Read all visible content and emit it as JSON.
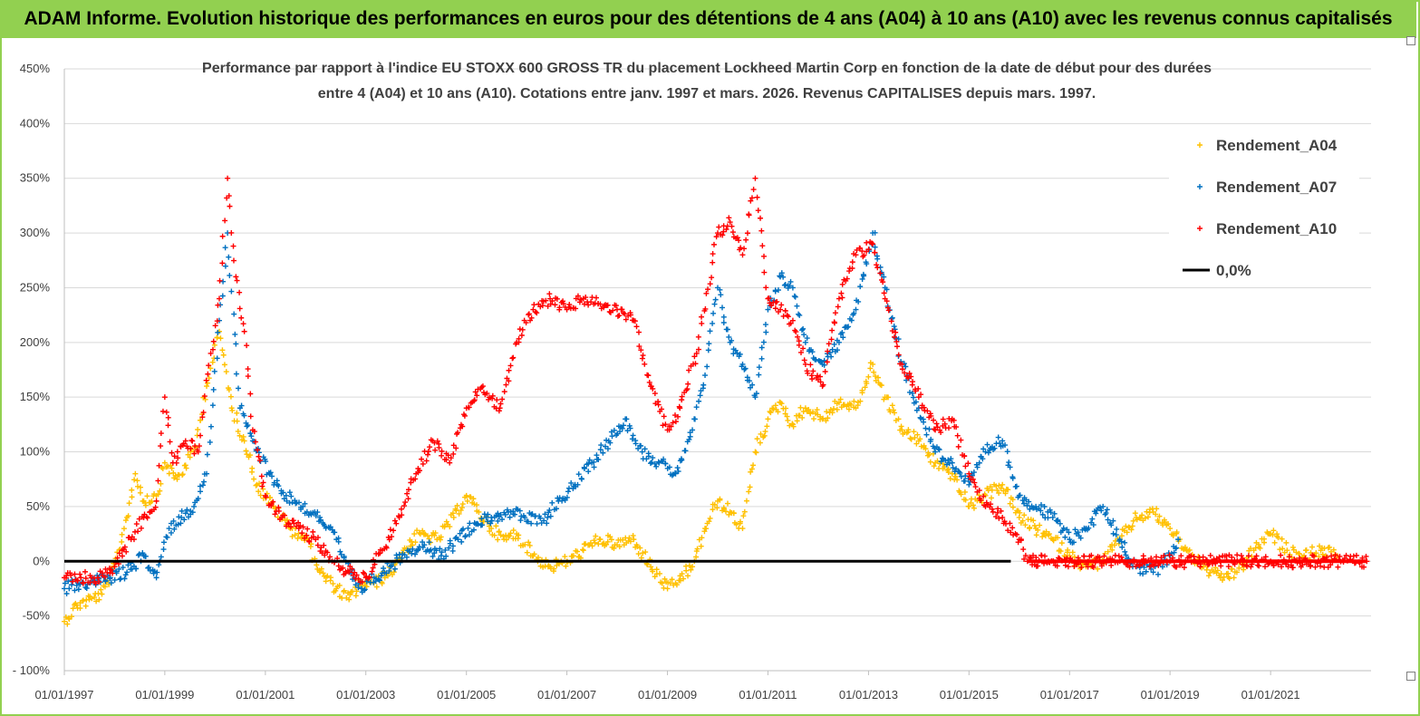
{
  "banner": {
    "title": "ADAM Informe. Evolution historique des performances en euros pour des détentions de 4 ans (A04) à 10 ans (A10) avec les revenus connus capitalisés"
  },
  "chart_data": {
    "type": "scatter",
    "title": "Performance par rapport à l'indice EU STOXX 600 GROSS TR  du placement Lockheed Martin Corp en fonction de la date de début pour des durées entre 4 (A04) et 10 ans (A10). Cotations entre janv. 1997 et mars. 2026. Revenus CAPITALISES depuis mars. 1997.",
    "title_lines": [
      "Performance par rapport à l'indice EU STOXX 600 GROSS TR  du placement Lockheed Martin Corp en fonction de la date de début pour des durées",
      "entre 4 (A04) et 10 ans (A10). Cotations entre janv. 1997 et mars. 2026. Revenus CAPITALISES depuis mars. 1997."
    ],
    "xlabel": "",
    "ylabel": "",
    "xlim": [
      "1997-01-01",
      "2023-01-01"
    ],
    "ylim": [
      -100,
      450
    ],
    "x_ticks": [
      "01/01/1997",
      "01/01/1999",
      "01/01/2001",
      "01/01/2003",
      "01/01/2005",
      "01/01/2007",
      "01/01/2009",
      "01/01/2011",
      "01/01/2013",
      "01/01/2015",
      "01/01/2017",
      "01/01/2019",
      "01/01/2021"
    ],
    "y_ticks": [
      "- 100%",
      "-50%",
      "0%",
      "50%",
      "100%",
      "150%",
      "200%",
      "250%",
      "300%",
      "350%",
      "400%",
      "450%"
    ],
    "grid": true,
    "legend_position": "right",
    "series": [
      {
        "name": "Rendement_A04",
        "marker": "+",
        "color": "#ffc000",
        "points": [
          [
            "1997-01-01",
            -55
          ],
          [
            "1997-04-01",
            -40
          ],
          [
            "1997-07-01",
            -35
          ],
          [
            "1997-10-01",
            -30
          ],
          [
            "1998-01-01",
            -5
          ],
          [
            "1998-04-01",
            40
          ],
          [
            "1998-06-01",
            80
          ],
          [
            "1998-08-01",
            55
          ],
          [
            "1998-11-01",
            60
          ],
          [
            "1999-01-01",
            90
          ],
          [
            "1999-04-01",
            75
          ],
          [
            "1999-08-01",
            100
          ],
          [
            "1999-11-01",
            160
          ],
          [
            "2000-02-01",
            210
          ],
          [
            "2000-05-01",
            140
          ],
          [
            "2000-08-01",
            110
          ],
          [
            "2000-11-01",
            70
          ],
          [
            "2001-03-01",
            50
          ],
          [
            "2001-07-01",
            30
          ],
          [
            "2001-11-01",
            20
          ],
          [
            "2002-02-01",
            -10
          ],
          [
            "2002-06-01",
            -25
          ],
          [
            "2002-09-01",
            -35
          ],
          [
            "2002-12-01",
            -20
          ],
          [
            "2003-03-01",
            -20
          ],
          [
            "2003-07-01",
            -10
          ],
          [
            "2003-10-01",
            10
          ],
          [
            "2004-02-01",
            25
          ],
          [
            "2004-06-01",
            20
          ],
          [
            "2004-10-01",
            40
          ],
          [
            "2005-01-01",
            60
          ],
          [
            "2005-04-01",
            45
          ],
          [
            "2005-07-01",
            30
          ],
          [
            "2005-10-01",
            20
          ],
          [
            "2006-01-01",
            25
          ],
          [
            "2006-05-01",
            5
          ],
          [
            "2006-09-01",
            -5
          ],
          [
            "2007-01-01",
            0
          ],
          [
            "2007-05-01",
            10
          ],
          [
            "2007-09-01",
            20
          ],
          [
            "2008-01-01",
            15
          ],
          [
            "2008-05-01",
            20
          ],
          [
            "2008-09-01",
            -5
          ],
          [
            "2009-01-01",
            -25
          ],
          [
            "2009-03-01",
            -20
          ],
          [
            "2009-07-01",
            -5
          ],
          [
            "2009-10-01",
            30
          ],
          [
            "2010-01-01",
            55
          ],
          [
            "2010-04-01",
            45
          ],
          [
            "2010-07-01",
            30
          ],
          [
            "2010-10-01",
            100
          ],
          [
            "2011-01-01",
            130
          ],
          [
            "2011-04-01",
            145
          ],
          [
            "2011-07-01",
            125
          ],
          [
            "2011-10-01",
            140
          ],
          [
            "2012-02-01",
            130
          ],
          [
            "2012-06-01",
            145
          ],
          [
            "2012-10-01",
            140
          ],
          [
            "2013-02-01",
            180
          ],
          [
            "2013-05-01",
            150
          ],
          [
            "2013-09-01",
            120
          ],
          [
            "2014-01-01",
            110
          ],
          [
            "2014-05-01",
            90
          ],
          [
            "2014-09-01",
            80
          ],
          [
            "2015-01-01",
            50
          ],
          [
            "2015-05-01",
            60
          ],
          [
            "2015-09-01",
            70
          ],
          [
            "2016-01-01",
            40
          ],
          [
            "2016-05-01",
            30
          ],
          [
            "2016-09-01",
            20
          ],
          [
            "2017-01-01",
            5
          ],
          [
            "2017-05-01",
            -5
          ],
          [
            "2017-09-01",
            0
          ],
          [
            "2018-01-01",
            20
          ],
          [
            "2018-05-01",
            40
          ],
          [
            "2018-09-01",
            45
          ],
          [
            "2019-01-01",
            30
          ],
          [
            "2019-05-01",
            10
          ],
          [
            "2019-09-01",
            -5
          ],
          [
            "2020-01-01",
            -15
          ],
          [
            "2020-05-01",
            -10
          ],
          [
            "2020-09-01",
            10
          ],
          [
            "2021-01-01",
            25
          ],
          [
            "2021-05-01",
            10
          ],
          [
            "2021-09-01",
            5
          ],
          [
            "2022-01-01",
            10
          ],
          [
            "2022-05-01",
            5
          ]
        ]
      },
      {
        "name": "Rendement_A07",
        "marker": "+",
        "color": "#0070c0",
        "points": [
          [
            "1997-01-01",
            -25
          ],
          [
            "1997-04-01",
            -22
          ],
          [
            "1997-08-01",
            -18
          ],
          [
            "1997-12-01",
            -15
          ],
          [
            "1998-04-01",
            -10
          ],
          [
            "1998-08-01",
            5
          ],
          [
            "1998-11-01",
            -15
          ],
          [
            "1999-02-01",
            30
          ],
          [
            "1999-05-01",
            40
          ],
          [
            "1999-08-01",
            50
          ],
          [
            "1999-11-01",
            80
          ],
          [
            "2000-02-01",
            220
          ],
          [
            "2000-04-01",
            300
          ],
          [
            "2000-07-01",
            140
          ],
          [
            "2000-10-01",
            110
          ],
          [
            "2001-02-01",
            80
          ],
          [
            "2001-06-01",
            60
          ],
          [
            "2001-10-01",
            50
          ],
          [
            "2002-02-01",
            40
          ],
          [
            "2002-06-01",
            20
          ],
          [
            "2002-09-01",
            -10
          ],
          [
            "2002-12-01",
            -25
          ],
          [
            "2003-03-01",
            -15
          ],
          [
            "2003-07-01",
            -5
          ],
          [
            "2003-11-01",
            10
          ],
          [
            "2004-03-01",
            15
          ],
          [
            "2004-07-01",
            5
          ],
          [
            "2004-11-01",
            20
          ],
          [
            "2005-03-01",
            35
          ],
          [
            "2005-07-01",
            40
          ],
          [
            "2005-11-01",
            45
          ],
          [
            "2006-03-01",
            40
          ],
          [
            "2006-07-01",
            35
          ],
          [
            "2006-11-01",
            55
          ],
          [
            "2007-03-01",
            70
          ],
          [
            "2007-07-01",
            90
          ],
          [
            "2007-11-01",
            110
          ],
          [
            "2008-03-01",
            130
          ],
          [
            "2008-07-01",
            100
          ],
          [
            "2008-11-01",
            90
          ],
          [
            "2009-03-01",
            80
          ],
          [
            "2009-07-01",
            120
          ],
          [
            "2009-10-01",
            170
          ],
          [
            "2010-01-01",
            250
          ],
          [
            "2010-04-01",
            200
          ],
          [
            "2010-07-01",
            180
          ],
          [
            "2010-10-01",
            150
          ],
          [
            "2011-01-01",
            230
          ],
          [
            "2011-04-01",
            260
          ],
          [
            "2011-07-01",
            250
          ],
          [
            "2011-10-01",
            200
          ],
          [
            "2012-02-01",
            180
          ],
          [
            "2012-06-01",
            200
          ],
          [
            "2012-10-01",
            230
          ],
          [
            "2013-02-01",
            300
          ],
          [
            "2013-05-01",
            250
          ],
          [
            "2013-09-01",
            180
          ],
          [
            "2014-01-01",
            140
          ],
          [
            "2014-05-01",
            100
          ],
          [
            "2014-09-01",
            90
          ],
          [
            "2015-01-01",
            70
          ],
          [
            "2015-05-01",
            100
          ],
          [
            "2015-09-01",
            110
          ],
          [
            "2016-01-01",
            60
          ],
          [
            "2016-05-01",
            50
          ],
          [
            "2016-09-01",
            40
          ],
          [
            "2017-01-01",
            20
          ],
          [
            "2017-05-01",
            30
          ],
          [
            "2017-09-01",
            50
          ],
          [
            "2018-01-01",
            20
          ],
          [
            "2018-05-01",
            -5
          ],
          [
            "2018-09-01",
            -10
          ],
          [
            "2019-01-01",
            5
          ],
          [
            "2019-03-01",
            20
          ]
        ]
      },
      {
        "name": "Rendement_A10",
        "marker": "+",
        "color": "#ff0000",
        "points": [
          [
            "1997-01-01",
            -15
          ],
          [
            "1997-05-01",
            -15
          ],
          [
            "1997-09-01",
            -15
          ],
          [
            "1998-01-01",
            -5
          ],
          [
            "1998-05-01",
            20
          ],
          [
            "1998-08-01",
            40
          ],
          [
            "1998-11-01",
            55
          ],
          [
            "1999-01-01",
            150
          ],
          [
            "1999-03-01",
            90
          ],
          [
            "1999-06-01",
            110
          ],
          [
            "1999-09-01",
            100
          ],
          [
            "1999-12-01",
            190
          ],
          [
            "2000-02-01",
            240
          ],
          [
            "2000-04-01",
            350
          ],
          [
            "2000-06-01",
            260
          ],
          [
            "2000-08-01",
            210
          ],
          [
            "2000-10-01",
            120
          ],
          [
            "2001-01-01",
            60
          ],
          [
            "2001-05-01",
            40
          ],
          [
            "2001-09-01",
            30
          ],
          [
            "2002-01-01",
            20
          ],
          [
            "2002-05-01",
            0
          ],
          [
            "2002-09-01",
            -10
          ],
          [
            "2003-01-01",
            -15
          ],
          [
            "2003-05-01",
            10
          ],
          [
            "2003-09-01",
            40
          ],
          [
            "2004-01-01",
            80
          ],
          [
            "2004-05-01",
            110
          ],
          [
            "2004-09-01",
            90
          ],
          [
            "2005-01-01",
            140
          ],
          [
            "2005-05-01",
            160
          ],
          [
            "2005-09-01",
            140
          ],
          [
            "2006-01-01",
            200
          ],
          [
            "2006-05-01",
            230
          ],
          [
            "2006-09-01",
            240
          ],
          [
            "2007-01-01",
            230
          ],
          [
            "2007-05-01",
            240
          ],
          [
            "2007-09-01",
            235
          ],
          [
            "2008-01-01",
            230
          ],
          [
            "2008-05-01",
            220
          ],
          [
            "2008-09-01",
            160
          ],
          [
            "2009-01-01",
            120
          ],
          [
            "2009-04-01",
            140
          ],
          [
            "2009-08-01",
            190
          ],
          [
            "2010-01-01",
            300
          ],
          [
            "2010-04-01",
            310
          ],
          [
            "2010-07-01",
            280
          ],
          [
            "2010-10-01",
            350
          ],
          [
            "2011-01-01",
            240
          ],
          [
            "2011-04-01",
            230
          ],
          [
            "2011-07-01",
            220
          ],
          [
            "2011-10-01",
            180
          ],
          [
            "2012-02-01",
            160
          ],
          [
            "2012-06-01",
            240
          ],
          [
            "2012-10-01",
            280
          ],
          [
            "2013-02-01",
            290
          ],
          [
            "2013-05-01",
            240
          ],
          [
            "2013-09-01",
            180
          ],
          [
            "2014-01-01",
            150
          ],
          [
            "2014-05-01",
            120
          ],
          [
            "2014-09-01",
            130
          ],
          [
            "2015-01-01",
            80
          ],
          [
            "2015-05-01",
            50
          ],
          [
            "2015-09-01",
            40
          ],
          [
            "2016-01-01",
            20
          ],
          [
            "2016-03-01",
            0
          ],
          [
            "2017-01-01",
            0
          ],
          [
            "2018-01-01",
            0
          ],
          [
            "2019-01-01",
            0
          ],
          [
            "2020-01-01",
            0
          ],
          [
            "2021-01-01",
            0
          ],
          [
            "2022-01-01",
            0
          ],
          [
            "2022-12-01",
            0
          ]
        ]
      },
      {
        "name": "0,0%",
        "type": "line",
        "color": "#000000",
        "points": [
          [
            "1997-01-01",
            0
          ],
          [
            "2015-11-01",
            0
          ]
        ]
      }
    ]
  }
}
